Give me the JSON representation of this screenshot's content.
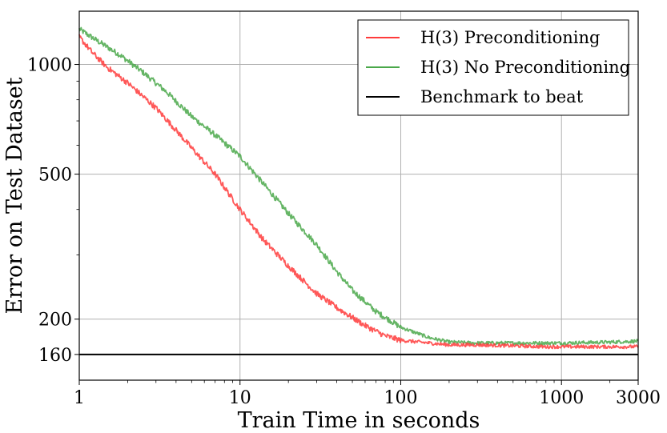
{
  "chart_data": {
    "type": "line",
    "title": "",
    "xlabel": "Train Time in seconds",
    "ylabel": "Error on Test Dataset",
    "x_scale": "log",
    "y_scale": "log",
    "xlim": [
      1,
      3000
    ],
    "ylim": [
      136,
      1400
    ],
    "x_ticks": [
      {
        "value": 1,
        "label": "1"
      },
      {
        "value": 10,
        "label": "10"
      },
      {
        "value": 100,
        "label": "100"
      },
      {
        "value": 1000,
        "label": "1000"
      },
      {
        "value": 3000,
        "label": "3000"
      }
    ],
    "y_ticks": [
      {
        "value": 160,
        "label": "160"
      },
      {
        "value": 200,
        "label": "200"
      },
      {
        "value": 500,
        "label": "500"
      },
      {
        "value": 1000,
        "label": "1000"
      }
    ],
    "grid": true,
    "legend": "top-right",
    "series": [
      {
        "name": "H(3) Preconditioning",
        "color": "#ff3b3b",
        "points": [
          [
            1,
            1190
          ],
          [
            1.2,
            1080
          ],
          [
            1.5,
            980
          ],
          [
            2,
            890
          ],
          [
            3,
            760
          ],
          [
            4,
            660
          ],
          [
            5,
            590
          ],
          [
            7,
            500
          ],
          [
            10,
            400
          ],
          [
            14,
            330
          ],
          [
            20,
            280
          ],
          [
            30,
            235
          ],
          [
            40,
            215
          ],
          [
            60,
            192
          ],
          [
            80,
            180
          ],
          [
            100,
            175
          ],
          [
            150,
            172
          ],
          [
            200,
            170
          ],
          [
            300,
            170
          ],
          [
            500,
            169
          ],
          [
            800,
            168
          ],
          [
            1000,
            168
          ],
          [
            2000,
            168
          ],
          [
            3000,
            168
          ]
        ]
      },
      {
        "name": "H(3) No Preconditioning",
        "color": "#4aa84a",
        "points": [
          [
            1,
            1250
          ],
          [
            1.3,
            1160
          ],
          [
            1.8,
            1060
          ],
          [
            2.5,
            950
          ],
          [
            3.5,
            840
          ],
          [
            5,
            720
          ],
          [
            7,
            640
          ],
          [
            10,
            560
          ],
          [
            14,
            470
          ],
          [
            20,
            390
          ],
          [
            30,
            320
          ],
          [
            40,
            270
          ],
          [
            50,
            240
          ],
          [
            70,
            210
          ],
          [
            100,
            190
          ],
          [
            150,
            178
          ],
          [
            200,
            173
          ],
          [
            300,
            172
          ],
          [
            500,
            172
          ],
          [
            1000,
            172
          ],
          [
            2000,
            173
          ],
          [
            3000,
            174
          ]
        ]
      },
      {
        "name": "Benchmark to beat",
        "color": "#000000",
        "points": [
          [
            1,
            160
          ],
          [
            3000,
            160
          ]
        ]
      }
    ]
  }
}
